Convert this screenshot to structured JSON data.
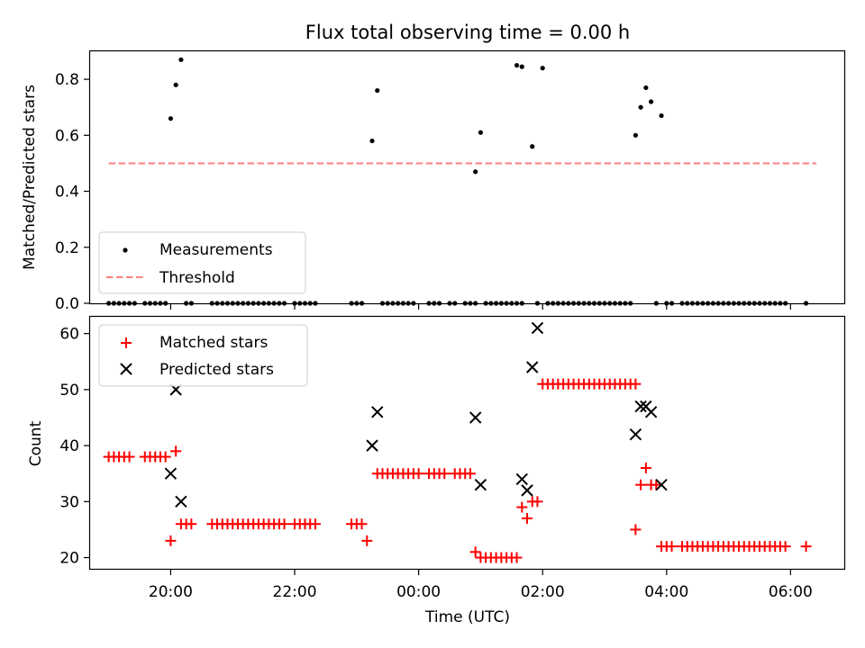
{
  "chart_data": [
    {
      "type": "scatter",
      "title": "Flux total observing time = 0.00 h",
      "ylabel": "Matched/Predicted stars",
      "xlim": [
        "18:42",
        "06:52"
      ],
      "ylim": [
        0,
        0.9
      ],
      "yticks": [
        "0.0",
        "0.2",
        "0.4",
        "0.6",
        "0.8"
      ],
      "grid": false,
      "legend": {
        "placement": "lower-left",
        "entries": [
          "Measurements",
          "Threshold"
        ]
      },
      "threshold": {
        "name": "Threshold",
        "value": 0.5,
        "x_range": [
          "19:00",
          "06:25"
        ],
        "color": "#ff7f7f",
        "style": "dashed"
      },
      "series": [
        {
          "name": "Measurements",
          "color": "#000000",
          "points": [
            [
              "19:00",
              0
            ],
            [
              "19:05",
              0
            ],
            [
              "19:10",
              0
            ],
            [
              "19:15",
              0
            ],
            [
              "19:20",
              0
            ],
            [
              "19:25",
              0
            ],
            [
              "19:35",
              0
            ],
            [
              "19:40",
              0
            ],
            [
              "19:45",
              0
            ],
            [
              "19:50",
              0
            ],
            [
              "19:55",
              0
            ],
            [
              "20:00",
              0.66
            ],
            [
              "20:05",
              0.78
            ],
            [
              "20:10",
              0.87
            ],
            [
              "20:15",
              0
            ],
            [
              "20:20",
              0
            ],
            [
              "20:40",
              0
            ],
            [
              "20:45",
              0
            ],
            [
              "20:50",
              0
            ],
            [
              "20:55",
              0
            ],
            [
              "21:00",
              0
            ],
            [
              "21:05",
              0
            ],
            [
              "21:10",
              0
            ],
            [
              "21:15",
              0
            ],
            [
              "21:20",
              0
            ],
            [
              "21:25",
              0
            ],
            [
              "21:30",
              0
            ],
            [
              "21:35",
              0
            ],
            [
              "21:40",
              0
            ],
            [
              "21:45",
              0
            ],
            [
              "21:50",
              0
            ],
            [
              "22:00",
              0
            ],
            [
              "22:05",
              0
            ],
            [
              "22:10",
              0
            ],
            [
              "22:15",
              0
            ],
            [
              "22:20",
              0
            ],
            [
              "22:55",
              0
            ],
            [
              "23:00",
              0
            ],
            [
              "23:05",
              0
            ],
            [
              "23:15",
              0.58
            ],
            [
              "23:20",
              0.76
            ],
            [
              "23:25",
              0
            ],
            [
              "23:30",
              0
            ],
            [
              "23:35",
              0
            ],
            [
              "23:40",
              0
            ],
            [
              "23:45",
              0
            ],
            [
              "23:50",
              0
            ],
            [
              "23:55",
              0
            ],
            [
              "00:10",
              0
            ],
            [
              "00:15",
              0
            ],
            [
              "00:20",
              0
            ],
            [
              "00:30",
              0
            ],
            [
              "00:35",
              0
            ],
            [
              "00:45",
              0
            ],
            [
              "00:50",
              0
            ],
            [
              "00:55",
              0
            ],
            [
              "00:55",
              0.47
            ],
            [
              "01:00",
              0.61
            ],
            [
              "01:05",
              0
            ],
            [
              "01:10",
              0
            ],
            [
              "01:15",
              0
            ],
            [
              "01:20",
              0
            ],
            [
              "01:25",
              0
            ],
            [
              "01:30",
              0
            ],
            [
              "01:35",
              0
            ],
            [
              "01:40",
              0
            ],
            [
              "01:35",
              0.85
            ],
            [
              "01:40",
              0.845
            ],
            [
              "01:50",
              0.56
            ],
            [
              "02:00",
              0.84
            ],
            [
              "01:55",
              0
            ],
            [
              "02:05",
              0
            ],
            [
              "02:10",
              0
            ],
            [
              "02:15",
              0
            ],
            [
              "02:20",
              0
            ],
            [
              "02:25",
              0
            ],
            [
              "02:30",
              0
            ],
            [
              "02:35",
              0
            ],
            [
              "02:40",
              0
            ],
            [
              "02:45",
              0
            ],
            [
              "02:50",
              0
            ],
            [
              "02:55",
              0
            ],
            [
              "03:00",
              0
            ],
            [
              "03:05",
              0
            ],
            [
              "03:10",
              0
            ],
            [
              "03:15",
              0
            ],
            [
              "03:20",
              0
            ],
            [
              "03:25",
              0
            ],
            [
              "03:30",
              0.6
            ],
            [
              "03:35",
              0.7
            ],
            [
              "03:40",
              0.77
            ],
            [
              "03:45",
              0.72
            ],
            [
              "03:55",
              0.67
            ],
            [
              "03:50",
              0
            ],
            [
              "04:00",
              0
            ],
            [
              "04:05",
              0
            ],
            [
              "04:15",
              0
            ],
            [
              "04:20",
              0
            ],
            [
              "04:25",
              0
            ],
            [
              "04:30",
              0
            ],
            [
              "04:35",
              0
            ],
            [
              "04:40",
              0
            ],
            [
              "04:45",
              0
            ],
            [
              "04:50",
              0
            ],
            [
              "04:55",
              0
            ],
            [
              "05:00",
              0
            ],
            [
              "05:05",
              0
            ],
            [
              "05:10",
              0
            ],
            [
              "05:15",
              0
            ],
            [
              "05:20",
              0
            ],
            [
              "05:25",
              0
            ],
            [
              "05:30",
              0
            ],
            [
              "05:35",
              0
            ],
            [
              "05:40",
              0
            ],
            [
              "05:45",
              0
            ],
            [
              "05:50",
              0
            ],
            [
              "05:55",
              0
            ],
            [
              "06:15",
              0
            ]
          ]
        }
      ]
    },
    {
      "type": "scatter",
      "xlabel": "Time (UTC)",
      "ylabel": "Count",
      "xlim": [
        "18:42",
        "06:52"
      ],
      "ylim": [
        18,
        63
      ],
      "yticks": [
        "20",
        "30",
        "40",
        "50",
        "60"
      ],
      "xticks": [
        "20:00",
        "22:00",
        "00:00",
        "02:00",
        "04:00",
        "06:00"
      ],
      "grid": false,
      "legend": {
        "placement": "upper-left",
        "entries": [
          "Matched stars",
          "Predicted stars"
        ]
      },
      "series": [
        {
          "name": "Matched stars",
          "marker": "plus",
          "color": "#ff0000",
          "points": [
            [
              "19:00",
              38
            ],
            [
              "19:05",
              38
            ],
            [
              "19:10",
              38
            ],
            [
              "19:15",
              38
            ],
            [
              "19:20",
              38
            ],
            [
              "19:35",
              38
            ],
            [
              "19:40",
              38
            ],
            [
              "19:45",
              38
            ],
            [
              "19:50",
              38
            ],
            [
              "19:55",
              38
            ],
            [
              "20:00",
              23
            ],
            [
              "20:05",
              39
            ],
            [
              "20:10",
              26
            ],
            [
              "20:15",
              26
            ],
            [
              "20:20",
              26
            ],
            [
              "20:40",
              26
            ],
            [
              "20:45",
              26
            ],
            [
              "20:50",
              26
            ],
            [
              "20:55",
              26
            ],
            [
              "21:00",
              26
            ],
            [
              "21:05",
              26
            ],
            [
              "21:10",
              26
            ],
            [
              "21:15",
              26
            ],
            [
              "21:20",
              26
            ],
            [
              "21:25",
              26
            ],
            [
              "21:30",
              26
            ],
            [
              "21:35",
              26
            ],
            [
              "21:40",
              26
            ],
            [
              "21:45",
              26
            ],
            [
              "21:50",
              26
            ],
            [
              "22:00",
              26
            ],
            [
              "22:05",
              26
            ],
            [
              "22:10",
              26
            ],
            [
              "22:15",
              26
            ],
            [
              "22:20",
              26
            ],
            [
              "22:55",
              26
            ],
            [
              "23:00",
              26
            ],
            [
              "23:05",
              26
            ],
            [
              "23:10",
              23
            ],
            [
              "23:20",
              35
            ],
            [
              "23:25",
              35
            ],
            [
              "23:30",
              35
            ],
            [
              "23:35",
              35
            ],
            [
              "23:40",
              35
            ],
            [
              "23:45",
              35
            ],
            [
              "23:50",
              35
            ],
            [
              "23:55",
              35
            ],
            [
              "00:00",
              35
            ],
            [
              "00:10",
              35
            ],
            [
              "00:15",
              35
            ],
            [
              "00:20",
              35
            ],
            [
              "00:25",
              35
            ],
            [
              "00:35",
              35
            ],
            [
              "00:40",
              35
            ],
            [
              "00:45",
              35
            ],
            [
              "00:50",
              35
            ],
            [
              "00:55",
              21
            ],
            [
              "01:00",
              20
            ],
            [
              "01:05",
              20
            ],
            [
              "01:10",
              20
            ],
            [
              "01:15",
              20
            ],
            [
              "01:20",
              20
            ],
            [
              "01:25",
              20
            ],
            [
              "01:30",
              20
            ],
            [
              "01:35",
              20
            ],
            [
              "01:40",
              29
            ],
            [
              "01:45",
              27
            ],
            [
              "01:50",
              30
            ],
            [
              "01:55",
              30
            ],
            [
              "02:00",
              51
            ],
            [
              "02:05",
              51
            ],
            [
              "02:10",
              51
            ],
            [
              "02:15",
              51
            ],
            [
              "02:20",
              51
            ],
            [
              "02:25",
              51
            ],
            [
              "02:30",
              51
            ],
            [
              "02:35",
              51
            ],
            [
              "02:40",
              51
            ],
            [
              "02:45",
              51
            ],
            [
              "02:50",
              51
            ],
            [
              "02:55",
              51
            ],
            [
              "03:00",
              51
            ],
            [
              "03:05",
              51
            ],
            [
              "03:10",
              51
            ],
            [
              "03:15",
              51
            ],
            [
              "03:20",
              51
            ],
            [
              "03:25",
              51
            ],
            [
              "03:30",
              51
            ],
            [
              "03:30",
              25
            ],
            [
              "03:35",
              33
            ],
            [
              "03:40",
              36
            ],
            [
              "03:45",
              33
            ],
            [
              "03:50",
              33
            ],
            [
              "03:55",
              22
            ],
            [
              "04:00",
              22
            ],
            [
              "04:05",
              22
            ],
            [
              "04:15",
              22
            ],
            [
              "04:20",
              22
            ],
            [
              "04:25",
              22
            ],
            [
              "04:30",
              22
            ],
            [
              "04:35",
              22
            ],
            [
              "04:40",
              22
            ],
            [
              "04:45",
              22
            ],
            [
              "04:50",
              22
            ],
            [
              "04:55",
              22
            ],
            [
              "05:00",
              22
            ],
            [
              "05:05",
              22
            ],
            [
              "05:10",
              22
            ],
            [
              "05:15",
              22
            ],
            [
              "05:20",
              22
            ],
            [
              "05:25",
              22
            ],
            [
              "05:30",
              22
            ],
            [
              "05:35",
              22
            ],
            [
              "05:40",
              22
            ],
            [
              "05:45",
              22
            ],
            [
              "05:50",
              22
            ],
            [
              "05:55",
              22
            ],
            [
              "06:15",
              22
            ]
          ]
        },
        {
          "name": "Predicted stars",
          "marker": "x",
          "color": "#000000",
          "points": [
            [
              "20:00",
              35
            ],
            [
              "20:05",
              50
            ],
            [
              "20:10",
              30
            ],
            [
              "23:15",
              40
            ],
            [
              "23:20",
              46
            ],
            [
              "00:55",
              45
            ],
            [
              "01:00",
              33
            ],
            [
              "01:40",
              34
            ],
            [
              "01:45",
              32
            ],
            [
              "01:50",
              54
            ],
            [
              "01:55",
              61
            ],
            [
              "03:30",
              42
            ],
            [
              "03:35",
              47
            ],
            [
              "03:40",
              47
            ],
            [
              "03:45",
              46
            ],
            [
              "03:55",
              33
            ]
          ]
        }
      ]
    }
  ]
}
